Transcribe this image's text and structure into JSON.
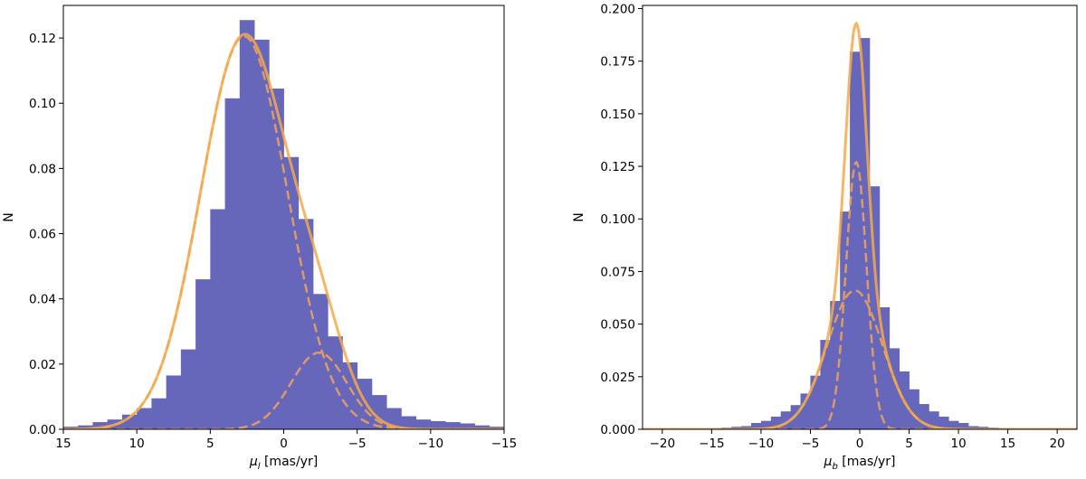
{
  "colors": {
    "bars": "#6666bb",
    "fit": "#f5a94a"
  },
  "chart_data": [
    {
      "type": "bar",
      "xlabel_main": "μ",
      "xlabel_sub": "l",
      "xlabel_rest": " [mas/yr]",
      "ylabel": "N",
      "xlim": [
        15,
        -15
      ],
      "ylim": [
        0,
        0.13
      ],
      "x_inverted": true,
      "xticks": [
        15,
        10,
        5,
        0,
        -5,
        -10,
        -15
      ],
      "xtick_labels": [
        "15",
        "10",
        "5",
        "0",
        "−5",
        "−10",
        "−15"
      ],
      "yticks": [
        0,
        0.02,
        0.04,
        0.06,
        0.08,
        0.1,
        0.12
      ],
      "ytick_labels": [
        "0.00",
        "0.02",
        "0.04",
        "0.06",
        "0.08",
        "0.10",
        "0.12"
      ],
      "bin_edges": [
        15,
        14,
        13,
        12,
        11,
        10,
        9,
        8,
        7,
        6,
        5,
        4,
        3,
        2,
        1,
        0,
        -1,
        -2,
        -3,
        -4,
        -5,
        -6,
        -7,
        -8,
        -9,
        -10,
        -11,
        -12,
        -13,
        -14,
        -15
      ],
      "values": [
        0.0008,
        0.0012,
        0.0022,
        0.003,
        0.0045,
        0.0065,
        0.0095,
        0.0165,
        0.0245,
        0.046,
        0.0675,
        0.1015,
        0.1255,
        0.1195,
        0.1045,
        0.0835,
        0.0645,
        0.0415,
        0.0285,
        0.0205,
        0.0155,
        0.0105,
        0.0065,
        0.004,
        0.003,
        0.0025,
        0.0022,
        0.0018,
        0.0012,
        0.0008
      ],
      "components": [
        {
          "amp": 0.1205,
          "mu": 2.7,
          "sigma": 2.95
        },
        {
          "amp": 0.0235,
          "mu": -2.4,
          "sigma": 1.9
        }
      ]
    },
    {
      "type": "bar",
      "xlabel_main": "μ",
      "xlabel_sub": "b",
      "xlabel_rest": " [mas/yr]",
      "ylabel": "N",
      "xlim": [
        -22,
        22
      ],
      "ylim": [
        0,
        0.2015
      ],
      "x_inverted": false,
      "xticks": [
        -20,
        -15,
        -10,
        -5,
        0,
        5,
        10,
        15,
        20
      ],
      "xtick_labels": [
        "−20",
        "−15",
        "−10",
        "−5",
        "0",
        "5",
        "10",
        "15",
        "20"
      ],
      "yticks": [
        0,
        0.025,
        0.05,
        0.075,
        0.1,
        0.125,
        0.15,
        0.175,
        0.2
      ],
      "ytick_labels": [
        "0.000",
        "0.025",
        "0.050",
        "0.075",
        "0.100",
        "0.125",
        "0.150",
        "0.175",
        "0.200"
      ],
      "bin_edges": [
        -18,
        -17,
        -16,
        -15,
        -14,
        -13,
        -12,
        -11,
        -10,
        -9,
        -8,
        -7,
        -6,
        -5,
        -4,
        -3,
        -2,
        -1,
        0,
        1,
        2,
        3,
        4,
        5,
        6,
        7,
        8,
        9,
        10,
        11,
        12,
        13,
        14,
        15,
        16,
        17,
        18,
        19,
        20
      ],
      "values": [
        0.0005,
        0.0003,
        0.0003,
        0.0005,
        0.0008,
        0.0012,
        0.0015,
        0.003,
        0.004,
        0.006,
        0.0085,
        0.0115,
        0.017,
        0.0255,
        0.0425,
        0.061,
        0.1035,
        0.1795,
        0.186,
        0.1155,
        0.058,
        0.0385,
        0.0275,
        0.019,
        0.012,
        0.0085,
        0.006,
        0.004,
        0.003,
        0.0015,
        0.0012,
        0.0008,
        0.0005,
        0.0004,
        0.0003,
        0.0003,
        0.0005,
        0.0003
      ],
      "components": [
        {
          "amp": 0.127,
          "mu": -0.35,
          "sigma": 1.05
        },
        {
          "amp": 0.066,
          "mu": -0.5,
          "sigma": 2.8
        }
      ]
    }
  ]
}
